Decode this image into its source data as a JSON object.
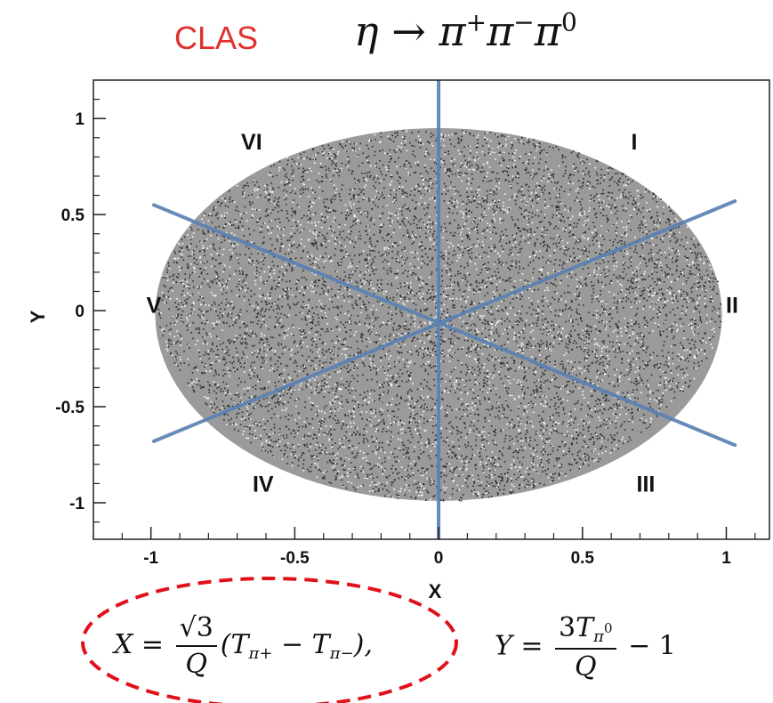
{
  "header": {
    "brand": "CLAS",
    "reaction": {
      "parent": "η",
      "arrow": "→",
      "p1": "π",
      "p1_charge": "+",
      "p2": "π",
      "p2_charge": "−",
      "p3": "π",
      "p3_charge": "0"
    }
  },
  "colors": {
    "brand": "#e0302c",
    "sector_lines": "#5b82b4",
    "ellipse_outline": "#e0111a",
    "points": "#2a2a2a"
  },
  "chart_data": {
    "type": "scatter",
    "title": "",
    "xlabel": "X",
    "ylabel": "Y",
    "xlim": [
      -1.2,
      1.15
    ],
    "ylim": [
      -1.19,
      1.2
    ],
    "x_ticks": [
      -1,
      -0.5,
      0,
      0.5,
      1
    ],
    "x_tick_labels": [
      "-1",
      "-0.5",
      "0",
      "0.5",
      "1"
    ],
    "y_ticks": [
      -1,
      -0.5,
      0,
      0.5,
      1
    ],
    "y_tick_labels": [
      "-1",
      "-0.5",
      "0",
      "0.5",
      "1"
    ],
    "grid": false,
    "dalitz_boundary": {
      "center": [
        0,
        -0.065
      ],
      "x_halfwidth": 0.985,
      "y_top": 0.95,
      "y_bottom": -0.99
    },
    "sector_lines": [
      {
        "x1": 0.0,
        "y1": 1.2,
        "x2": 0.0,
        "y2": -1.19
      },
      {
        "x1": -0.99,
        "y1": 0.55,
        "x2": 1.03,
        "y2": -0.7
      },
      {
        "x1": -0.99,
        "y1": -0.68,
        "x2": 1.03,
        "y2": 0.57
      }
    ],
    "sectors": [
      {
        "label": "I",
        "x": 0.68,
        "y": 0.88
      },
      {
        "label": "II",
        "x": 1.02,
        "y": 0.03
      },
      {
        "label": "III",
        "x": 0.72,
        "y": -0.9
      },
      {
        "label": "IV",
        "x": -0.61,
        "y": -0.9
      },
      {
        "label": "V",
        "x": -0.99,
        "y": 0.03
      },
      {
        "label": "VI",
        "x": -0.65,
        "y": 0.88
      }
    ]
  },
  "formulas": {
    "x_def": {
      "lhs": "X",
      "eq": "=",
      "num": "√3",
      "den": "Q",
      "rest": "(T",
      "a": "π+",
      "minus": "−",
      "b": "T",
      "c": "π−",
      "close": "),"
    },
    "y_def": {
      "lhs": "Y",
      "eq": "=",
      "num_coef": "3",
      "num_T": "T",
      "num_sub": "π",
      "num_sup": "0",
      "den": "Q",
      "rest": "− 1"
    }
  }
}
